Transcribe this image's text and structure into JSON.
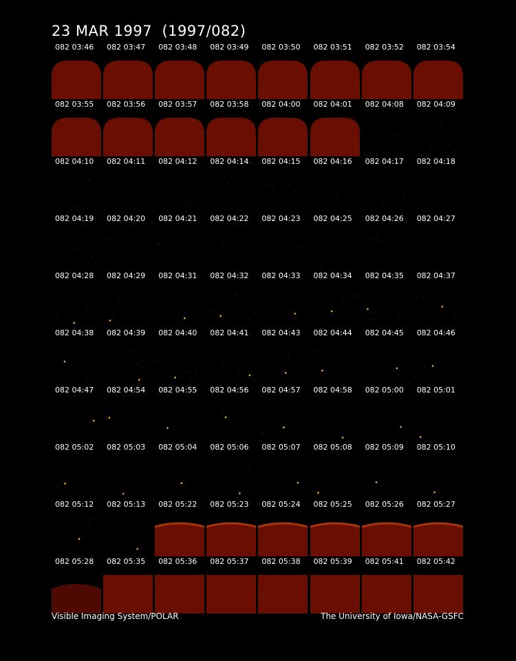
{
  "title": "23 MAR 1997  (1997/082)",
  "footer": {
    "left": "Visible Imaging System/POLAR",
    "right": "The University of Iowa/NASA-GSFC"
  },
  "colors": {
    "background": "#000000",
    "disk": "#6a0e02",
    "limb": "#a8340a",
    "star": "#ffb020",
    "text": "#ffffff"
  },
  "frames": [
    {
      "label": "082 03:46",
      "view": "dome"
    },
    {
      "label": "082 03:47",
      "view": "dome"
    },
    {
      "label": "082 03:48",
      "view": "dome"
    },
    {
      "label": "082 03:49",
      "view": "dome"
    },
    {
      "label": "082 03:50",
      "view": "dome"
    },
    {
      "label": "082 03:51",
      "view": "dome"
    },
    {
      "label": "082 03:52",
      "view": "dome"
    },
    {
      "label": "082 03:54",
      "view": "dome"
    },
    {
      "label": "082 03:55",
      "view": "dome"
    },
    {
      "label": "082 03:56",
      "view": "dome"
    },
    {
      "label": "082 03:57",
      "view": "dome"
    },
    {
      "label": "082 03:58",
      "view": "dome"
    },
    {
      "label": "082 04:00",
      "view": "dome"
    },
    {
      "label": "082 04:01",
      "view": "dome"
    },
    {
      "label": "082 04:08",
      "view": "space"
    },
    {
      "label": "082 04:09",
      "view": "space"
    },
    {
      "label": "082 04:10",
      "view": "space"
    },
    {
      "label": "082 04:11",
      "view": "space"
    },
    {
      "label": "082 04:12",
      "view": "space"
    },
    {
      "label": "082 04:14",
      "view": "space"
    },
    {
      "label": "082 04:15",
      "view": "space"
    },
    {
      "label": "082 04:16",
      "view": "space"
    },
    {
      "label": "082 04:17",
      "view": "space"
    },
    {
      "label": "082 04:18",
      "view": "space"
    },
    {
      "label": "082 04:19",
      "view": "space"
    },
    {
      "label": "082 04:20",
      "view": "space"
    },
    {
      "label": "082 04:21",
      "view": "space"
    },
    {
      "label": "082 04:22",
      "view": "space"
    },
    {
      "label": "082 04:23",
      "view": "space"
    },
    {
      "label": "082 04:25",
      "view": "space"
    },
    {
      "label": "082 04:26",
      "view": "space"
    },
    {
      "label": "082 04:27",
      "view": "space"
    },
    {
      "label": "082 04:28",
      "view": "stars"
    },
    {
      "label": "082 04:29",
      "view": "stars"
    },
    {
      "label": "082 04:31",
      "view": "stars"
    },
    {
      "label": "082 04:32",
      "view": "stars"
    },
    {
      "label": "082 04:33",
      "view": "stars"
    },
    {
      "label": "082 04:34",
      "view": "stars"
    },
    {
      "label": "082 04:35",
      "view": "stars"
    },
    {
      "label": "082 04:37",
      "view": "stars"
    },
    {
      "label": "082 04:38",
      "view": "stars"
    },
    {
      "label": "082 04:39",
      "view": "stars"
    },
    {
      "label": "082 04:40",
      "view": "stars"
    },
    {
      "label": "082 04:41",
      "view": "stars"
    },
    {
      "label": "082 04:43",
      "view": "stars"
    },
    {
      "label": "082 04:44",
      "view": "stars"
    },
    {
      "label": "082 04:45",
      "view": "stars"
    },
    {
      "label": "082 04:46",
      "view": "stars"
    },
    {
      "label": "082 04:47",
      "view": "stars"
    },
    {
      "label": "082 04:54",
      "view": "dark"
    },
    {
      "label": "082 04:55",
      "view": "dark"
    },
    {
      "label": "082 04:56",
      "view": "dark"
    },
    {
      "label": "082 04:57",
      "view": "dark"
    },
    {
      "label": "082 04:58",
      "view": "dark"
    },
    {
      "label": "082 05:00",
      "view": "dark"
    },
    {
      "label": "082 05:01",
      "view": "dark"
    },
    {
      "label": "082 05:02",
      "view": "dark"
    },
    {
      "label": "082 05:03",
      "view": "dark"
    },
    {
      "label": "082 05:04",
      "view": "dark"
    },
    {
      "label": "082 05:06",
      "view": "dark"
    },
    {
      "label": "082 05:07",
      "view": "dark"
    },
    {
      "label": "082 05:08",
      "view": "dark"
    },
    {
      "label": "082 05:09",
      "view": "dark"
    },
    {
      "label": "082 05:10",
      "view": "dark"
    },
    {
      "label": "082 05:12",
      "view": "dark"
    },
    {
      "label": "082 05:13",
      "view": "dark"
    },
    {
      "label": "082 05:22",
      "view": "limb"
    },
    {
      "label": "082 05:23",
      "view": "limb"
    },
    {
      "label": "082 05:24",
      "view": "limb"
    },
    {
      "label": "082 05:25",
      "view": "limb"
    },
    {
      "label": "082 05:26",
      "view": "limb"
    },
    {
      "label": "082 05:27",
      "view": "limb"
    },
    {
      "label": "082 05:28",
      "view": "partial"
    },
    {
      "label": "082 05:35",
      "view": "full"
    },
    {
      "label": "082 05:36",
      "view": "full"
    },
    {
      "label": "082 05:37",
      "view": "full"
    },
    {
      "label": "082 05:38",
      "view": "full"
    },
    {
      "label": "082 05:39",
      "view": "full"
    },
    {
      "label": "082 05:41",
      "view": "full"
    },
    {
      "label": "082 05:42",
      "view": "full"
    }
  ]
}
